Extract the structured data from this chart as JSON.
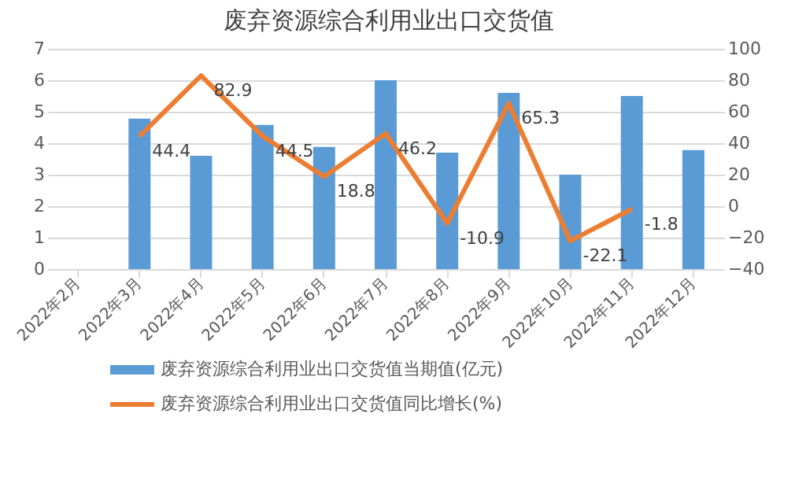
{
  "chart_data": {
    "type": "bar",
    "title": "废弃资源综合利用业出口交货值",
    "categories": [
      "2022年2月",
      "2022年3月",
      "2022年4月",
      "2022年5月",
      "2022年6月",
      "2022年7月",
      "2022年8月",
      "2022年9月",
      "2022年10月",
      "2022年11月",
      "2022年12月"
    ],
    "series": [
      {
        "name": "废弃资源综合利用业出口交货值当期值(亿元)",
        "color": "#5b9bd5",
        "values": [
          null,
          4.78,
          3.6,
          4.58,
          3.88,
          6.0,
          3.7,
          5.6,
          3.0,
          5.5,
          3.78
        ]
      },
      {
        "name": "废弃资源综合利用业出口交货值同比增长(%)",
        "type": "line",
        "axis": "y2",
        "color": "#ed7d31",
        "values": [
          null,
          44.4,
          82.9,
          44.5,
          18.8,
          46.2,
          -10.9,
          65.3,
          -22.1,
          -1.8,
          null
        ],
        "value_labels": [
          null,
          "44.4",
          "82.9",
          "44.5",
          "18.8",
          "46.2",
          "-10.9",
          "65.3",
          "-22.1",
          "-1.8",
          null
        ]
      }
    ],
    "ylim": [
      0,
      7
    ],
    "yticks": [
      0,
      1,
      2,
      3,
      4,
      5,
      6,
      7
    ],
    "y2lim": [
      -40,
      100
    ],
    "y2ticks": [
      -40,
      -20,
      0,
      20,
      40,
      60,
      80,
      100
    ],
    "grid": "y",
    "legend": "bottom",
    "marker": "none"
  }
}
